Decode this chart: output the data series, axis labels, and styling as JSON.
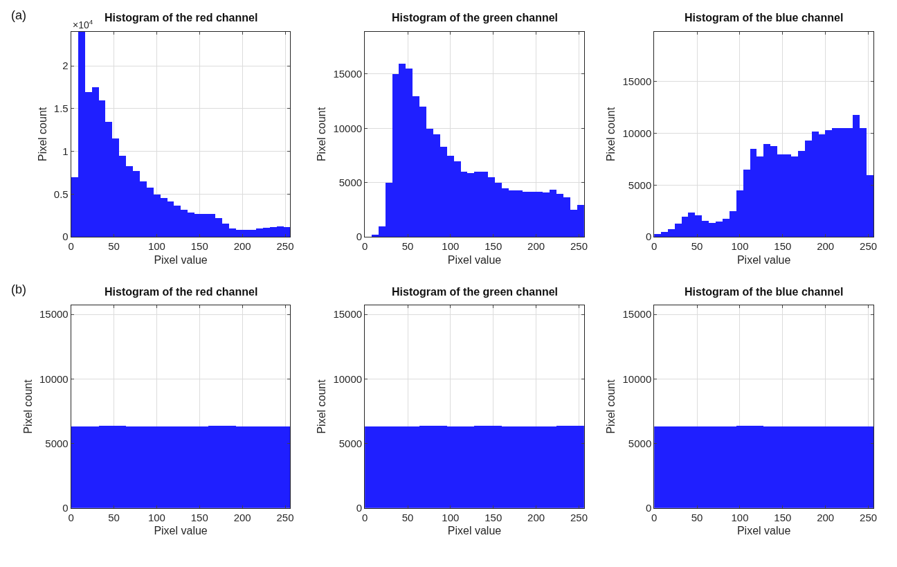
{
  "chart_data": [
    {
      "type": "histogram",
      "title": "Histogram of the red channel",
      "xlabel": "Pixel value",
      "ylabel": "Pixel count",
      "color": "#1f1fff",
      "grid": true,
      "annotations": [
        "(a)",
        "×10$^{4}$"
      ],
      "bins": [
        0,
        8,
        16,
        24,
        32,
        40,
        48,
        56,
        64,
        72,
        80,
        88,
        96,
        104,
        112,
        120,
        128,
        136,
        144,
        152,
        160,
        168,
        176,
        184,
        192,
        200,
        208,
        216,
        224,
        232,
        240,
        248,
        256
      ],
      "values": [
        0.7,
        2.4,
        1.7,
        1.75,
        1.6,
        1.35,
        1.15,
        0.95,
        0.83,
        0.77,
        0.65,
        0.58,
        0.5,
        0.46,
        0.42,
        0.37,
        0.32,
        0.29,
        0.27,
        0.27,
        0.27,
        0.22,
        0.16,
        0.1,
        0.09,
        0.09,
        0.09,
        0.1,
        0.11,
        0.12,
        0.13,
        0.12
      ],
      "xlim": [
        0,
        256
      ],
      "xticks": [
        0,
        50,
        100,
        150,
        200,
        250
      ],
      "ylim": [
        0,
        2.4
      ],
      "yticks": [
        0,
        0.5,
        1,
        1.5,
        2
      ]
    },
    {
      "type": "histogram",
      "title": "Histogram of the green channel",
      "xlabel": "Pixel value",
      "ylabel": "Pixel count",
      "color": "#1f1fff",
      "grid": true,
      "bins": [
        0,
        8,
        16,
        24,
        32,
        40,
        48,
        56,
        64,
        72,
        80,
        88,
        96,
        104,
        112,
        120,
        128,
        136,
        144,
        152,
        160,
        168,
        176,
        184,
        192,
        200,
        208,
        216,
        224,
        232,
        240,
        248,
        256
      ],
      "values": [
        0,
        200,
        1000,
        5000,
        15000,
        16000,
        15500,
        13000,
        12000,
        10000,
        9500,
        8300,
        7500,
        7000,
        6000,
        5900,
        6000,
        6000,
        5500,
        5000,
        4500,
        4300,
        4300,
        4200,
        4200,
        4200,
        4100,
        4400,
        4000,
        3700,
        2500,
        3000
      ],
      "xlim": [
        0,
        256
      ],
      "xticks": [
        0,
        50,
        100,
        150,
        200,
        250
      ],
      "ylim": [
        0,
        18900
      ],
      "yticks": [
        0,
        5000,
        10000,
        15000
      ]
    },
    {
      "type": "histogram",
      "title": "Histogram of the blue channel",
      "xlabel": "Pixel value",
      "ylabel": "Pixel count",
      "color": "#1f1fff",
      "grid": true,
      "bins": [
        0,
        8,
        16,
        24,
        32,
        40,
        48,
        56,
        64,
        72,
        80,
        88,
        96,
        104,
        112,
        120,
        128,
        136,
        144,
        152,
        160,
        168,
        176,
        184,
        192,
        200,
        208,
        216,
        224,
        232,
        240,
        248,
        256
      ],
      "values": [
        300,
        500,
        800,
        1300,
        2000,
        2400,
        2100,
        1600,
        1400,
        1500,
        1800,
        2500,
        4500,
        6500,
        8500,
        7800,
        9000,
        8800,
        8000,
        8000,
        7800,
        8300,
        9300,
        10200,
        9900,
        10300,
        10500,
        10500,
        10500,
        11800,
        10500,
        6000
      ],
      "xlim": [
        0,
        256
      ],
      "xticks": [
        0,
        50,
        100,
        150,
        200,
        250
      ],
      "ylim": [
        0,
        19800
      ],
      "yticks": [
        0,
        5000,
        10000,
        15000
      ]
    },
    {
      "type": "histogram",
      "title": "Histogram of the red channel",
      "xlabel": "Pixel value",
      "ylabel": "Pixel count",
      "color": "#1f1fff",
      "grid": true,
      "annotations": [
        "(b)"
      ],
      "bins": [
        0,
        32,
        64,
        96,
        128,
        160,
        192,
        224,
        256
      ],
      "values": [
        6300,
        6350,
        6300,
        6300,
        6300,
        6350,
        6300,
        6300
      ],
      "xlim": [
        0,
        256
      ],
      "xticks": [
        0,
        50,
        100,
        150,
        200,
        250
      ],
      "ylim": [
        0,
        15700
      ],
      "yticks": [
        0,
        5000,
        10000,
        15000
      ]
    },
    {
      "type": "histogram",
      "title": "Histogram of the green channel",
      "xlabel": "Pixel value",
      "ylabel": "Pixel count",
      "color": "#1f1fff",
      "grid": true,
      "bins": [
        0,
        32,
        64,
        96,
        128,
        160,
        192,
        224,
        256
      ],
      "values": [
        6300,
        6300,
        6350,
        6300,
        6350,
        6300,
        6300,
        6350
      ],
      "xlim": [
        0,
        256
      ],
      "xticks": [
        0,
        50,
        100,
        150,
        200,
        250
      ],
      "ylim": [
        0,
        15700
      ],
      "yticks": [
        0,
        5000,
        10000,
        15000
      ]
    },
    {
      "type": "histogram",
      "title": "Histogram of the blue channel",
      "xlabel": "Pixel value",
      "ylabel": "Pixel count",
      "color": "#1f1fff",
      "grid": true,
      "bins": [
        0,
        32,
        64,
        96,
        128,
        160,
        192,
        224,
        256
      ],
      "values": [
        6300,
        6300,
        6300,
        6350,
        6300,
        6300,
        6300,
        6300
      ],
      "xlim": [
        0,
        256
      ],
      "xticks": [
        0,
        50,
        100,
        150,
        200,
        250
      ],
      "ylim": [
        0,
        15700
      ],
      "yticks": [
        0,
        5000,
        10000,
        15000
      ]
    }
  ]
}
